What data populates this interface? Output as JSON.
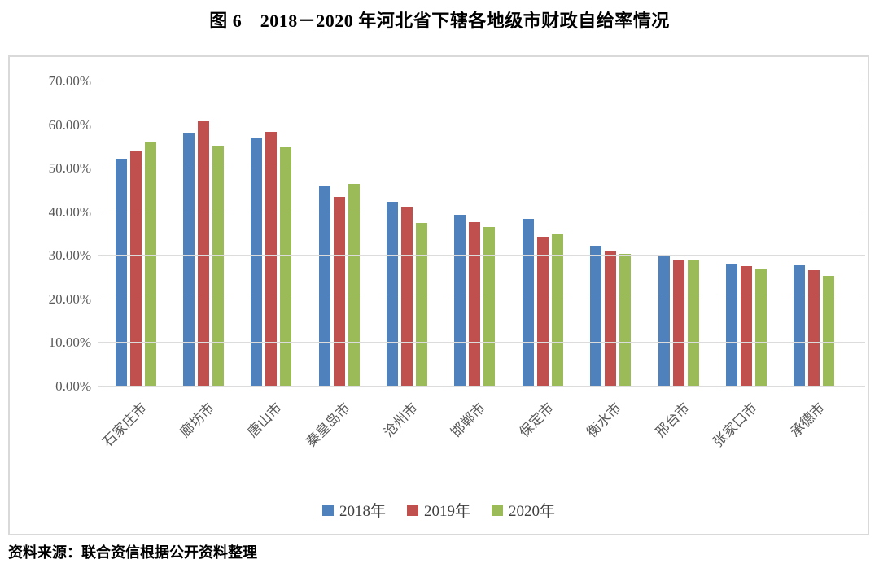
{
  "title": "图 6　2018－2020 年河北省下辖各地级市财政自给率情况",
  "source_note": "资料来源：联合资信根据公开资料整理",
  "chart_data": {
    "type": "bar",
    "title": "图 6 2018－2020 年河北省下辖各地级市财政自给率情况",
    "categories": [
      "石家庄市",
      "廊坊市",
      "唐山市",
      "秦皇岛市",
      "沧州市",
      "邯郸市",
      "保定市",
      "衡水市",
      "邢台市",
      "张家口市",
      "承德市"
    ],
    "series": [
      {
        "name": "2018年",
        "color": "#4F81BD",
        "values": [
          52.0,
          58.3,
          57.0,
          45.9,
          42.3,
          39.4,
          38.5,
          32.3,
          30.3,
          28.1,
          27.8
        ]
      },
      {
        "name": "2019年",
        "color": "#C0504D",
        "values": [
          54.0,
          60.8,
          58.5,
          43.5,
          41.3,
          37.8,
          34.4,
          31.0,
          29.1,
          27.6,
          26.7
        ]
      },
      {
        "name": "2020年",
        "color": "#9BBB59",
        "values": [
          56.2,
          55.2,
          54.8,
          46.5,
          37.5,
          36.5,
          35.1,
          30.4,
          28.9,
          27.1,
          25.4
        ]
      }
    ],
    "ylim": [
      0,
      70
    ],
    "ytick_step": 10,
    "ytick_labels": [
      "0.00%",
      "10.00%",
      "20.00%",
      "30.00%",
      "40.00%",
      "50.00%",
      "60.00%",
      "70.00%"
    ],
    "grid": true,
    "legend_position": "bottom",
    "colors": {
      "gridline": "#dcdcdc",
      "axis_text": "#595959",
      "box_border": "#d9d9d9"
    }
  }
}
